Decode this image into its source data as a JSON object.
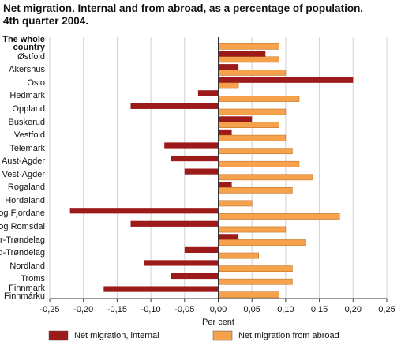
{
  "chart_data": {
    "type": "hbar",
    "title": "Net migration. Internal and from abroad, as a percentage of population.",
    "subtitle": "4th quarter 2004.",
    "x_label": "Per cent",
    "categories": [
      "The whole\ncountry",
      "Østfold",
      "Akershus",
      "Oslo",
      "Hedmark",
      "Oppland",
      "Buskerud",
      "Vestfold",
      "Telemark",
      "Aust-Agder",
      "Vest-Agder",
      "Rogaland",
      "Hordaland",
      "Sogn og Fjordane",
      "Møre og Romsdal",
      "Sør-Trøndelag",
      "Nord-Trøndelag",
      "Nordland",
      "Troms",
      "Finnmark\nFinnmárku"
    ],
    "series": [
      {
        "name": "Net migration, internal",
        "color": "#9c1a1a",
        "values": [
          0,
          0.07,
          0.03,
          0.2,
          -0.03,
          -0.13,
          0.05,
          0.02,
          -0.08,
          -0.07,
          -0.05,
          0.02,
          0.0,
          -0.22,
          -0.13,
          0.03,
          -0.05,
          -0.11,
          -0.07,
          -0.17
        ]
      },
      {
        "name": "Net migration from abroad",
        "color": "#f6a24c",
        "values": [
          0.09,
          0.09,
          0.1,
          0.03,
          0.12,
          0.1,
          0.09,
          0.1,
          0.11,
          0.12,
          0.14,
          0.11,
          0.05,
          0.18,
          0.1,
          0.13,
          0.06,
          0.11,
          0.11,
          0.09
        ]
      }
    ],
    "xlim": [
      -0.25,
      0.25
    ],
    "xticks": [
      {
        "value": -0.25,
        "label": "-0,25"
      },
      {
        "value": -0.2,
        "label": "-0,20"
      },
      {
        "value": -0.15,
        "label": "-0,15"
      },
      {
        "value": -0.1,
        "label": "-0,10"
      },
      {
        "value": -0.05,
        "label": "-0,05"
      },
      {
        "value": 0,
        "label": "0,00"
      },
      {
        "value": 0.05,
        "label": "0,05"
      },
      {
        "value": 0.1,
        "label": "0,10"
      },
      {
        "value": 0.15,
        "label": "0,15"
      },
      {
        "value": 0.2,
        "label": "0,20"
      },
      {
        "value": 0.25,
        "label": "0,25"
      }
    ],
    "grid": true,
    "legend": "bottom"
  }
}
